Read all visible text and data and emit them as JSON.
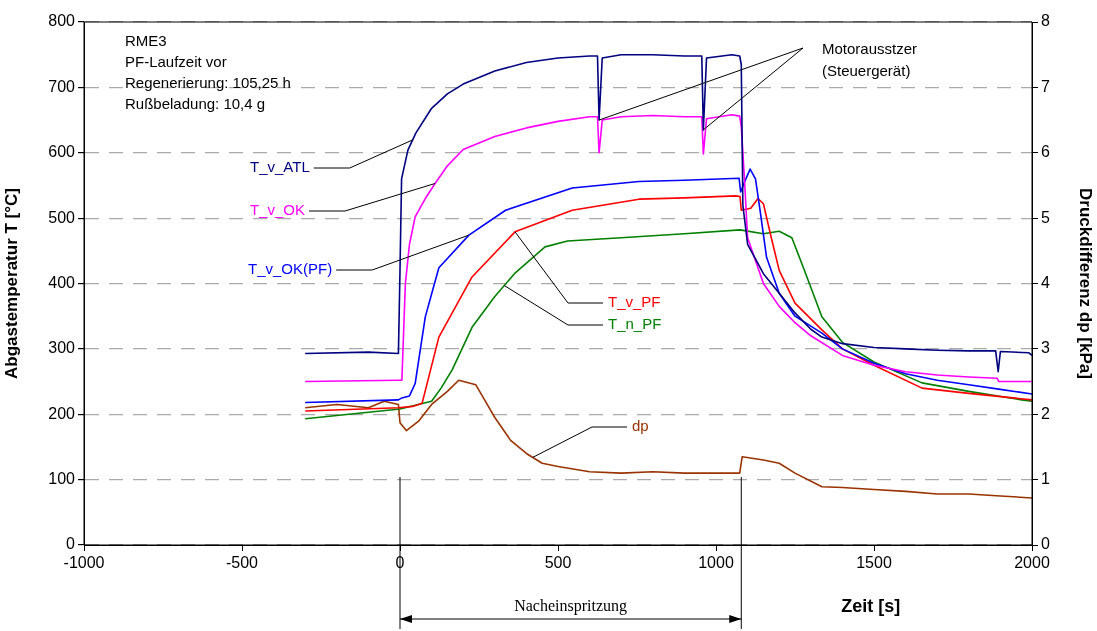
{
  "chart_data": {
    "type": "line",
    "xlabel": "Zeit [s]",
    "ylabel": "Abgastemperatur T [°C]",
    "y2label": "Druckdifferenz dp [kPa]",
    "xlim": [
      -1000,
      2000
    ],
    "xticks": [
      -1000,
      -500,
      0,
      500,
      1000,
      1500,
      2000
    ],
    "ylim": [
      0,
      800
    ],
    "yticks": [
      0,
      100,
      200,
      300,
      400,
      500,
      600,
      700,
      800
    ],
    "y2lim": [
      0,
      8
    ],
    "y2ticks": [
      0,
      1,
      2,
      3,
      4,
      5,
      6,
      7,
      8
    ],
    "grid": "y",
    "marker": "none",
    "line_style": "solid",
    "annotations": [
      "RME3",
      "PF-Laufzeit vor",
      "Regenerierung: 105,25 h",
      "Rußbeladung: 10,4 g",
      {
        "text": "Motorausstzer\n(Steuergerät)",
        "x": 630,
        "y": 650
      },
      "Nacheinspritzung"
    ],
    "ref_lines": [
      {
        "axis": "x",
        "value": 0,
        "color": "#000000"
      },
      {
        "axis": "x",
        "value": 1080,
        "color": "#000000"
      }
    ],
    "series": [
      {
        "name": "T_v_ATL",
        "color": "#000080",
        "x": [
          -300,
          -100,
          -5,
          0,
          5,
          25,
          50,
          100,
          150,
          200,
          300,
          400,
          500,
          600,
          625,
          630,
          640,
          700,
          800,
          900,
          955,
          960,
          970,
          1050,
          1075,
          1080,
          1085,
          1100,
          1150,
          1200,
          1250,
          1300,
          1335,
          1400,
          1500,
          1600,
          1700,
          1800,
          1885,
          1893,
          1900,
          1990,
          2000
        ],
        "values": [
          293,
          295,
          293,
          420,
          560,
          604,
          630,
          668,
          690,
          705,
          725,
          738,
          745,
          748,
          748,
          650,
          745,
          750,
          750,
          748,
          748,
          635,
          745,
          750,
          748,
          735,
          520,
          460,
          415,
          385,
          355,
          330,
          318,
          308,
          302,
          300,
          298,
          297,
          297,
          265,
          296,
          294,
          290
        ]
      },
      {
        "name": "T_v_OK",
        "color": "#ff00ff",
        "x": [
          -300,
          -5,
          6,
          17,
          30,
          48,
          80,
          111,
          150,
          200,
          300,
          400,
          500,
          600,
          625,
          630,
          640,
          700,
          800,
          900,
          955,
          960,
          970,
          1050,
          1075,
          1080,
          1090,
          1100,
          1150,
          1200,
          1250,
          1300,
          1400,
          1500,
          1600,
          1700,
          1800,
          1890,
          1895,
          2000
        ],
        "values": [
          250,
          252,
          252,
          400,
          460,
          502,
          530,
          553,
          580,
          605,
          625,
          638,
          648,
          655,
          655,
          600,
          650,
          655,
          657,
          655,
          655,
          598,
          652,
          658,
          656,
          640,
          560,
          470,
          400,
          365,
          340,
          320,
          290,
          275,
          265,
          260,
          257,
          255,
          250,
          250
        ]
      },
      {
        "name": "T_v_OK(PF)",
        "color": "#0000ff",
        "x": [
          -300,
          -5,
          6,
          30,
          48,
          80,
          123,
          218,
          334,
          545,
          756,
          900,
          1073,
          1078,
          1090,
          1108,
          1125,
          1140,
          1160,
          1200,
          1250,
          1335,
          1400,
          1500,
          1600,
          1700,
          1800,
          1900,
          2000
        ],
        "values": [
          218,
          222,
          225,
          228,
          247,
          349,
          424,
          474,
          512,
          546,
          556,
          558,
          561,
          540,
          555,
          575,
          560,
          510,
          440,
          385,
          350,
          324,
          300,
          278,
          262,
          252,
          245,
          238,
          231
        ]
      },
      {
        "name": "T_v_PF",
        "color": "#ff0000",
        "x": [
          -300,
          -5,
          40,
          70,
          123,
          228,
          364,
          545,
          756,
          900,
          1062,
          1076,
          1080,
          1110,
          1133,
          1150,
          1175,
          1200,
          1250,
          1335,
          1400,
          1500,
          1652,
          1800,
          2000
        ],
        "values": [
          205,
          210,
          212,
          217,
          318,
          410,
          479,
          512,
          529,
          531,
          534,
          533,
          512,
          515,
          530,
          522,
          470,
          420,
          370,
          329,
          300,
          275,
          240,
          232,
          222
        ]
      },
      {
        "name": "T_n_PF",
        "color": "#008000",
        "x": [
          -300,
          0,
          100,
          130,
          165,
          228,
          300,
          364,
          459,
          530,
          700,
          900,
          1076,
          1150,
          1200,
          1240,
          1280,
          1335,
          1400,
          1500,
          1652,
          1800,
          1968,
          2000
        ],
        "values": [
          193,
          208,
          220,
          240,
          268,
          333,
          380,
          416,
          456,
          465,
          470,
          476,
          482,
          476,
          480,
          470,
          420,
          349,
          310,
          280,
          248,
          235,
          222,
          220
        ]
      },
      {
        "name": "dp",
        "color": "#993300",
        "axis": "y2",
        "x": [
          -300,
          -200,
          -100,
          -50,
          -5,
          0,
          20,
          60,
          100,
          150,
          186,
          240,
          270,
          300,
          350,
          400,
          450,
          500,
          600,
          700,
          800,
          900,
          1000,
          1075,
          1083,
          1150,
          1200,
          1250,
          1335,
          1400,
          1500,
          1600,
          1700,
          1800,
          1900,
          2000
        ],
        "values": [
          2.1,
          2.15,
          2.1,
          2.2,
          2.15,
          1.87,
          1.75,
          1.9,
          2.15,
          2.35,
          2.52,
          2.45,
          2.2,
          1.95,
          1.6,
          1.4,
          1.25,
          1.2,
          1.12,
          1.1,
          1.12,
          1.1,
          1.1,
          1.1,
          1.35,
          1.3,
          1.25,
          1.1,
          0.89,
          0.88,
          0.85,
          0.82,
          0.78,
          0.78,
          0.75,
          0.72
        ]
      }
    ]
  }
}
